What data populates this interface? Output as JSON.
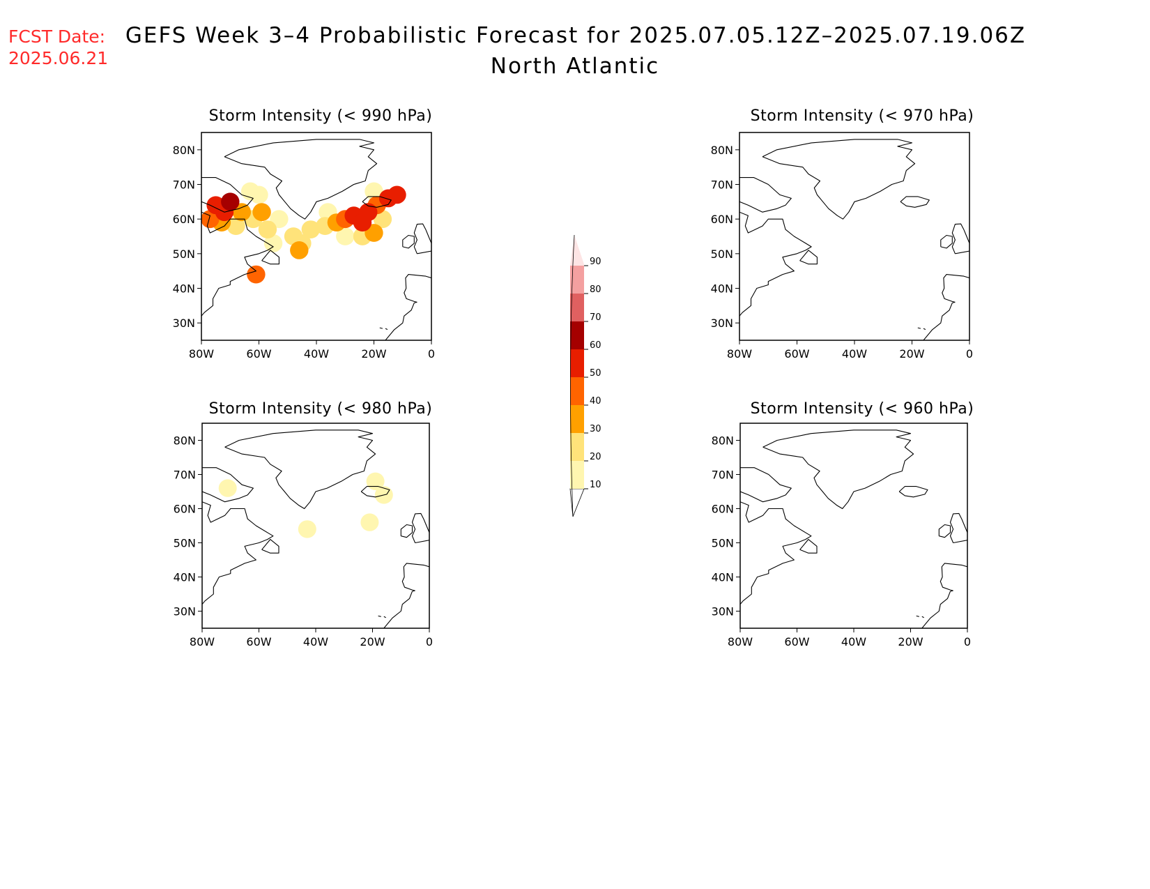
{
  "header": {
    "fcst_label": "FCST Date:",
    "fcst_date": "2025.06.21",
    "title": "GEFS Week 3–4 Probabilistic Forecast for 2025.07.05.12Z–2025.07.19.06Z",
    "subtitle": "North Atlantic"
  },
  "axes": {
    "lon_ticks": [
      {
        "value": -80,
        "label": "80W"
      },
      {
        "value": -60,
        "label": "60W"
      },
      {
        "value": -40,
        "label": "40W"
      },
      {
        "value": -20,
        "label": "20W"
      },
      {
        "value": 0,
        "label": "0"
      }
    ],
    "lat_ticks": [
      {
        "value": 30,
        "label": "30N"
      },
      {
        "value": 40,
        "label": "40N"
      },
      {
        "value": 50,
        "label": "50N"
      },
      {
        "value": 60,
        "label": "60N"
      },
      {
        "value": 70,
        "label": "70N"
      },
      {
        "value": 80,
        "label": "80N"
      }
    ],
    "lon_range": [
      -80,
      0
    ],
    "lat_range": [
      25,
      85
    ]
  },
  "colorbar": {
    "levels": [
      {
        "label": "10",
        "color": "#fff6b0"
      },
      {
        "label": "20",
        "color": "#ffe37a"
      },
      {
        "label": "30",
        "color": "#ffa000"
      },
      {
        "label": "40",
        "color": "#ff6400"
      },
      {
        "label": "50",
        "color": "#e81e00"
      },
      {
        "label": "60",
        "color": "#a50000"
      },
      {
        "label": "70",
        "color": "#e06060"
      },
      {
        "label": "80",
        "color": "#f4a0a0"
      },
      {
        "label": "90",
        "color": "#fde4e4"
      }
    ]
  },
  "panels": [
    {
      "id": "p990",
      "title": "Storm Intensity (< 990 hPa)",
      "blobs": [
        {
          "lon": -72,
          "lat": 62,
          "level": 5
        },
        {
          "lon": -75,
          "lat": 64,
          "level": 5
        },
        {
          "lon": -70,
          "lat": 65,
          "level": 6
        },
        {
          "lon": -77,
          "lat": 60,
          "level": 4
        },
        {
          "lon": -73,
          "lat": 59,
          "level": 3
        },
        {
          "lon": -66,
          "lat": 62,
          "level": 3
        },
        {
          "lon": -68,
          "lat": 58,
          "level": 2
        },
        {
          "lon": -62,
          "lat": 60,
          "level": 2
        },
        {
          "lon": -59,
          "lat": 62,
          "level": 3
        },
        {
          "lon": -57,
          "lat": 57,
          "level": 2
        },
        {
          "lon": -53,
          "lat": 60,
          "level": 1
        },
        {
          "lon": -60,
          "lat": 67,
          "level": 1
        },
        {
          "lon": -63,
          "lat": 68,
          "level": 1
        },
        {
          "lon": -55,
          "lat": 53,
          "level": 1
        },
        {
          "lon": -48,
          "lat": 55,
          "level": 2
        },
        {
          "lon": -45,
          "lat": 53,
          "level": 2
        },
        {
          "lon": -46,
          "lat": 51,
          "level": 3
        },
        {
          "lon": -42,
          "lat": 57,
          "level": 2
        },
        {
          "lon": -37,
          "lat": 58,
          "level": 2
        },
        {
          "lon": -33,
          "lat": 59,
          "level": 3
        },
        {
          "lon": -30,
          "lat": 60,
          "level": 4
        },
        {
          "lon": -27,
          "lat": 61,
          "level": 5
        },
        {
          "lon": -24,
          "lat": 59,
          "level": 5
        },
        {
          "lon": -22,
          "lat": 62,
          "level": 5
        },
        {
          "lon": -19,
          "lat": 64,
          "level": 4
        },
        {
          "lon": -15,
          "lat": 66,
          "level": 5
        },
        {
          "lon": -12,
          "lat": 67,
          "level": 5
        },
        {
          "lon": -20,
          "lat": 56,
          "level": 3
        },
        {
          "lon": -24,
          "lat": 55,
          "level": 2
        },
        {
          "lon": -30,
          "lat": 55,
          "level": 1
        },
        {
          "lon": -36,
          "lat": 62,
          "level": 1
        },
        {
          "lon": -20,
          "lat": 68,
          "level": 1
        },
        {
          "lon": -17,
          "lat": 60,
          "level": 2
        },
        {
          "lon": -61,
          "lat": 44,
          "level": 4
        }
      ]
    },
    {
      "id": "p970",
      "title": "Storm Intensity (< 970 hPa)",
      "blobs": []
    },
    {
      "id": "p980",
      "title": "Storm Intensity (< 980 hPa)",
      "blobs": [
        {
          "lon": -71,
          "lat": 66,
          "level": 1
        },
        {
          "lon": -43,
          "lat": 54,
          "level": 1
        },
        {
          "lon": -21,
          "lat": 56,
          "level": 1
        },
        {
          "lon": -19,
          "lat": 68,
          "level": 1
        },
        {
          "lon": -16,
          "lat": 64,
          "level": 1
        }
      ]
    },
    {
      "id": "p960",
      "title": "Storm Intensity (< 960 hPa)",
      "blobs": []
    }
  ]
}
